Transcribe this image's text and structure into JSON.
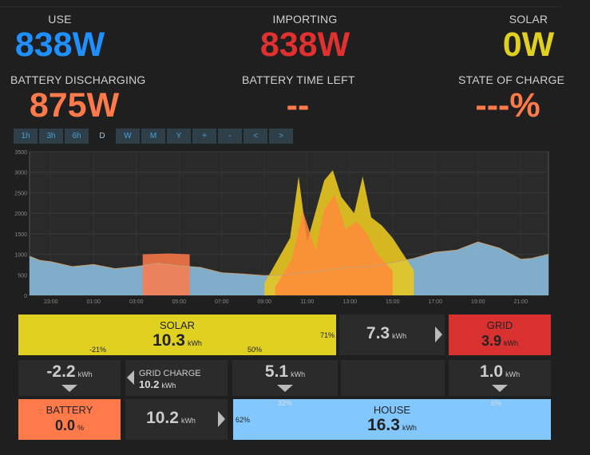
{
  "colors": {
    "use": "#1e90ff",
    "importing": "#e03030",
    "solar": "#e0d020",
    "battery": "#ff7a4a",
    "house": "#82c8ff",
    "grid": "#d93030"
  },
  "stats": {
    "use": {
      "label": "USE",
      "value": "838W"
    },
    "importing": {
      "label": "IMPORTING",
      "value": "838W"
    },
    "solar": {
      "label": "SOLAR",
      "value": "0W"
    },
    "battery_discharging": {
      "label": "BATTERY DISCHARGING",
      "value": "875W"
    },
    "battery_time_left": {
      "label": "BATTERY TIME LEFT",
      "value": "--"
    },
    "state_of_charge": {
      "label": "STATE OF CHARGE",
      "value": "---%"
    }
  },
  "range_tabs": [
    "1h",
    "3h",
    "6h",
    "D",
    "W",
    "M",
    "Y",
    "+",
    "-",
    "<",
    ">"
  ],
  "active_tab": "D",
  "chart_data": {
    "type": "area",
    "y_ticks": [
      "0",
      "500",
      "1000",
      "1500",
      "2000",
      "2500",
      "3000",
      "3500"
    ],
    "x_ticks": [
      "23:00",
      "01:00",
      "03:00",
      "05:00",
      "07:00",
      "09:00",
      "11:00",
      "13:00",
      "15:00",
      "17:00",
      "19:00",
      "21:00"
    ],
    "ylim": [
      0,
      3500
    ],
    "xlim": [
      22.0,
      46.3
    ],
    "house": [
      [
        22,
        950
      ],
      [
        22.5,
        850
      ],
      [
        23,
        820
      ],
      [
        24,
        700
      ],
      [
        25,
        750
      ],
      [
        26,
        650
      ],
      [
        27,
        700
      ],
      [
        28,
        780
      ],
      [
        29,
        720
      ],
      [
        30,
        680
      ],
      [
        31,
        550
      ],
      [
        32,
        520
      ],
      [
        33,
        480
      ],
      [
        34,
        500
      ],
      [
        35,
        560
      ],
      [
        36,
        620
      ],
      [
        37,
        680
      ],
      [
        38,
        700
      ],
      [
        39,
        800
      ],
      [
        40,
        900
      ],
      [
        41,
        1050
      ],
      [
        42,
        1100
      ],
      [
        43,
        1300
      ],
      [
        44,
        1150
      ],
      [
        45,
        880
      ],
      [
        45.5,
        900
      ],
      [
        46.3,
        1000
      ]
    ],
    "battery": [
      [
        27.3,
        0
      ],
      [
        27.3,
        1000
      ],
      [
        28.5,
        1020
      ],
      [
        29.5,
        1000
      ],
      [
        29.5,
        0
      ]
    ],
    "solar_peaks": [
      [
        33,
        300
      ],
      [
        34.2,
        1400
      ],
      [
        34.6,
        2900
      ],
      [
        35,
        1300
      ],
      [
        35.8,
        2800
      ],
      [
        36.2,
        3050
      ],
      [
        36.6,
        2400
      ],
      [
        37.2,
        2000
      ],
      [
        37.6,
        2900
      ],
      [
        38,
        1900
      ],
      [
        38.5,
        1700
      ],
      [
        39,
        1400
      ],
      [
        39.5,
        1000
      ],
      [
        40,
        600
      ]
    ],
    "solar_orange": [
      [
        33.5,
        200
      ],
      [
        34.3,
        900
      ],
      [
        34.8,
        2050
      ],
      [
        35.4,
        1100
      ],
      [
        35.8,
        2100
      ],
      [
        36.3,
        2450
      ],
      [
        36.8,
        1600
      ],
      [
        37.3,
        1800
      ],
      [
        37.8,
        1500
      ],
      [
        38.3,
        1000
      ],
      [
        39,
        600
      ]
    ]
  },
  "flow": {
    "solar": {
      "title": "SOLAR",
      "value": "10.3",
      "unit": "kWh",
      "pct_right": "71%",
      "pct_left": "-21%",
      "pct_mid": "50%"
    },
    "solar_to_grid": {
      "value": "7.3",
      "unit": "kWh"
    },
    "grid": {
      "title": "GRID",
      "value": "3.9",
      "unit": "kWh"
    },
    "solar_to_battery": {
      "value": "-2.2",
      "unit": "kWh"
    },
    "grid_charge": {
      "label": "GRID CHARGE",
      "value": "10.2",
      "unit": "kWh"
    },
    "solar_to_house": {
      "value": "5.1",
      "unit": "kWh",
      "pct": "32%"
    },
    "grid_to_house": {
      "value": "1.0",
      "unit": "kWh",
      "pct": "6%"
    },
    "battery": {
      "title": "BATTERY",
      "value": "0.0",
      "unit": "%"
    },
    "battery_to_house": {
      "value": "10.2",
      "unit": "kWh"
    },
    "house": {
      "title": "HOUSE",
      "value": "16.3",
      "unit": "kWh",
      "pct": "62%"
    }
  }
}
